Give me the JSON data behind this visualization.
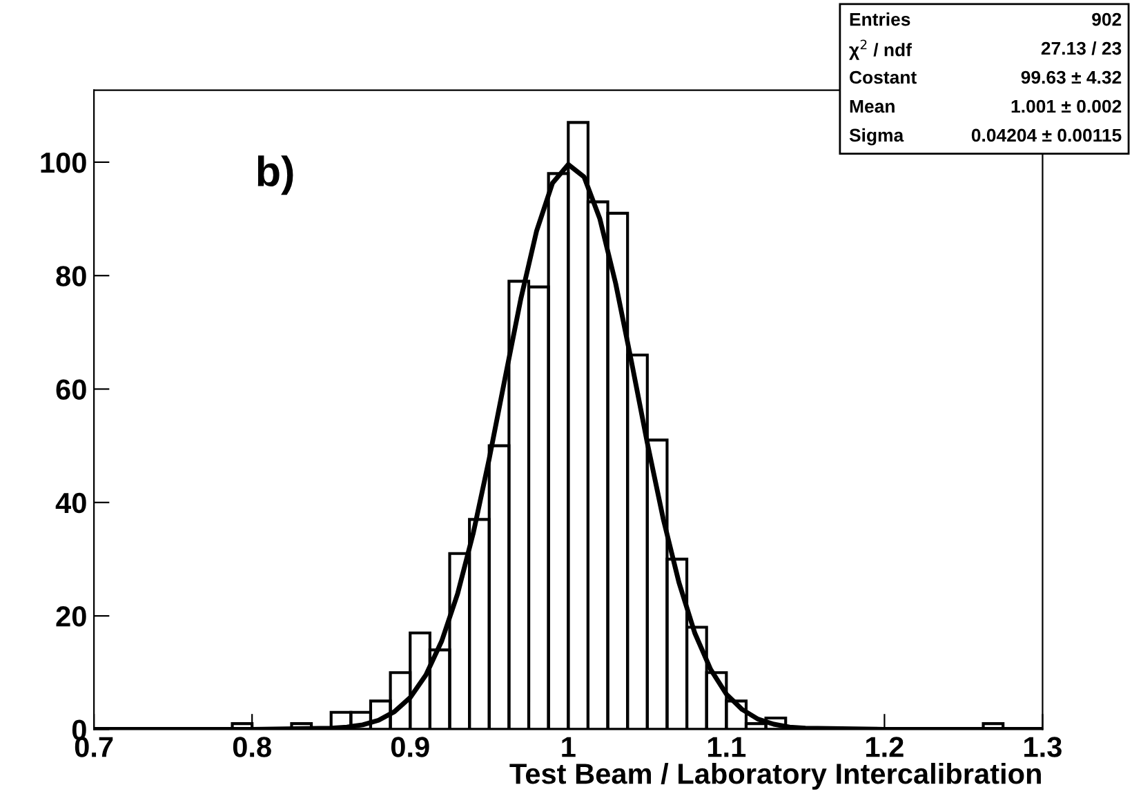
{
  "chart_data": {
    "type": "histogram",
    "xlabel": "Test Beam / Laboratory Intercalibration",
    "annotations": [
      "b)",
      "Entries",
      "902",
      "χ$^{2}$ / ndf",
      "27.13 / 23",
      "Costant",
      "99.63 ± 4.32",
      "Mean",
      "1.001 ± 0.002",
      "Sigma",
      "0.04204 ± 0.00115"
    ],
    "series": [
      {
        "color": "#000000",
        "bins": [
          0.7,
          0.7125,
          0.725,
          0.7375,
          0.75,
          0.7625,
          0.775,
          0.7875,
          0.8,
          0.8125,
          0.825,
          0.8375,
          0.85,
          0.8625,
          0.875,
          0.8875,
          0.9,
          0.9125,
          0.925,
          0.9375,
          0.95,
          0.9625,
          0.975,
          0.9875,
          1.0,
          1.0125,
          1.025,
          1.0375,
          1.05,
          1.0625,
          1.075,
          1.0875,
          1.1,
          1.1125,
          1.125,
          1.1375,
          1.15,
          1.1625,
          1.175,
          1.1875,
          1.2,
          1.2125,
          1.225,
          1.2375,
          1.25,
          1.2625,
          1.275,
          1.2875,
          1.3
        ],
        "values": [
          0,
          0,
          0,
          0,
          0,
          0,
          0,
          1,
          0,
          0,
          1,
          0,
          3,
          3,
          5,
          10,
          17,
          14,
          31,
          37,
          50,
          79,
          78,
          98,
          107,
          93,
          91,
          66,
          51,
          30,
          18,
          10,
          5,
          1,
          2,
          0,
          0,
          0,
          0,
          0,
          0,
          0,
          0,
          0,
          0,
          1,
          0,
          0
        ]
      },
      {
        "type": "line",
        "color": "#000000",
        "x": [
          0.7,
          0.8,
          0.85,
          0.86,
          0.87,
          0.88,
          0.89,
          0.9,
          0.91,
          0.92,
          0.93,
          0.94,
          0.95,
          0.96,
          0.97,
          0.98,
          0.99,
          1.0,
          1.01,
          1.02,
          1.03,
          1.04,
          1.05,
          1.06,
          1.07,
          1.08,
          1.09,
          1.1,
          1.11,
          1.12,
          1.13,
          1.14,
          1.15,
          1.2,
          1.3
        ],
        "values": [
          0,
          0,
          0.2,
          0.4,
          0.8,
          1.6,
          3.1,
          5.6,
          9.6,
          15.6,
          23.9,
          34.7,
          47.7,
          61.9,
          75.9,
          87.9,
          96.3,
          99.6,
          97.4,
          90.0,
          78.6,
          64.8,
          50.5,
          37.2,
          25.9,
          17.0,
          10.6,
          6.2,
          3.5,
          1.8,
          0.9,
          0.4,
          0.2,
          0,
          0
        ]
      }
    ],
    "xlim": [
      0.7,
      1.3
    ],
    "xticks": [
      0.7,
      0.8,
      0.9,
      1,
      1.1,
      1.2,
      1.3
    ],
    "ylim": [
      0,
      112.7
    ],
    "yticks": [
      0,
      20,
      40,
      60,
      80,
      100
    ],
    "grid": false,
    "legend": false
  }
}
